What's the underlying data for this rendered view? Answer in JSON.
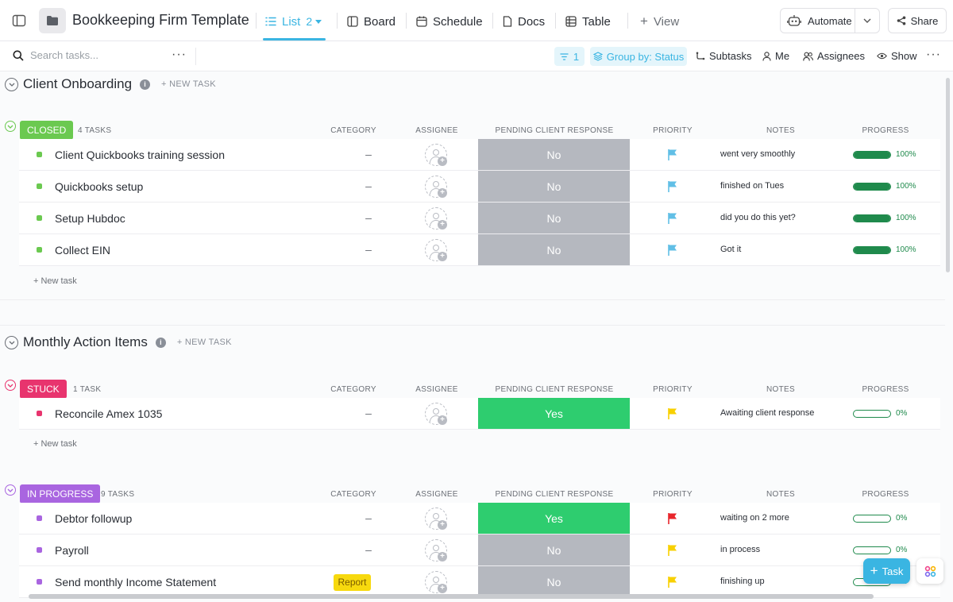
{
  "header": {
    "title": "Bookkeeping Firm Template",
    "views": [
      {
        "label": "List",
        "count": "2",
        "active": true
      },
      {
        "label": "Board"
      },
      {
        "label": "Schedule"
      },
      {
        "label": "Docs"
      },
      {
        "label": "Table"
      },
      {
        "label": "View"
      }
    ],
    "automate_label": "Automate",
    "share_label": "Share"
  },
  "toolbar": {
    "search_placeholder": "Search tasks...",
    "filter_count": "1",
    "group_by_label": "Group by: Status",
    "subtasks_label": "Subtasks",
    "me_label": "Me",
    "assignees_label": "Assignees",
    "show_label": "Show"
  },
  "columns": {
    "category": "CATEGORY",
    "assignee": "ASSIGNEE",
    "pending": "PENDING CLIENT RESPONSE",
    "priority": "PRIORITY",
    "notes": "NOTES",
    "progress": "PROGRESS"
  },
  "sections": [
    {
      "title": "Client Onboarding",
      "new_task_label": "+ NEW TASK",
      "groups": [
        {
          "status": "CLOSED",
          "status_color": "#6bc950",
          "task_count": "4 TASKS",
          "add_task_label": "+ New task",
          "tasks": [
            {
              "name": "Client Quickbooks training session",
              "category": "–",
              "pending": "No",
              "pending_color": "#b5b8bf",
              "priority_color": "#61bfe6",
              "notes": "went very smoothly",
              "progress": 100,
              "progress_label": "100%"
            },
            {
              "name": "Quickbooks setup",
              "category": "–",
              "pending": "No",
              "pending_color": "#b5b8bf",
              "priority_color": "#61bfe6",
              "notes": "finished on Tues",
              "progress": 100,
              "progress_label": "100%"
            },
            {
              "name": "Setup Hubdoc",
              "category": "–",
              "pending": "No",
              "pending_color": "#b5b8bf",
              "priority_color": "#61bfe6",
              "notes": "did you do this yet?",
              "progress": 100,
              "progress_label": "100%"
            },
            {
              "name": "Collect EIN",
              "category": "–",
              "pending": "No",
              "pending_color": "#b5b8bf",
              "priority_color": "#61bfe6",
              "notes": "Got it",
              "progress": 100,
              "progress_label": "100%"
            }
          ]
        }
      ]
    },
    {
      "title": "Monthly Action Items",
      "new_task_label": "+ NEW TASK",
      "groups": [
        {
          "status": "STUCK",
          "status_color": "#e8346e",
          "task_count": "1 TASK",
          "add_task_label": "+ New task",
          "tasks": [
            {
              "name": "Reconcile Amex 1035",
              "category": "–",
              "pending": "Yes",
              "pending_color": "#2ecd6f",
              "priority_color": "#f8d000",
              "notes": "Awaiting client response",
              "progress": 0,
              "progress_label": "0%"
            }
          ]
        },
        {
          "status": "IN PROGRESS",
          "status_color": "#a965e0",
          "task_count": "9 TASKS",
          "tasks": [
            {
              "name": "Debtor followup",
              "category": "–",
              "pending": "Yes",
              "pending_color": "#2ecd6f",
              "priority_color": "#e8262c",
              "notes": "waiting on 2 more",
              "progress": 0,
              "progress_label": "0%"
            },
            {
              "name": "Payroll",
              "category": "–",
              "pending": "No",
              "pending_color": "#b5b8bf",
              "priority_color": "#f8d000",
              "notes": "in process",
              "progress": 0,
              "progress_label": "0%"
            },
            {
              "name": "Send monthly Income Statement",
              "category": "Report",
              "category_tag": true,
              "pending": "No",
              "pending_color": "#b5b8bf",
              "priority_color": "#f8d000",
              "notes": "finishing up",
              "progress": 0,
              "progress_label": "0%"
            }
          ]
        }
      ]
    }
  ],
  "fab": {
    "task_label": "Task"
  }
}
